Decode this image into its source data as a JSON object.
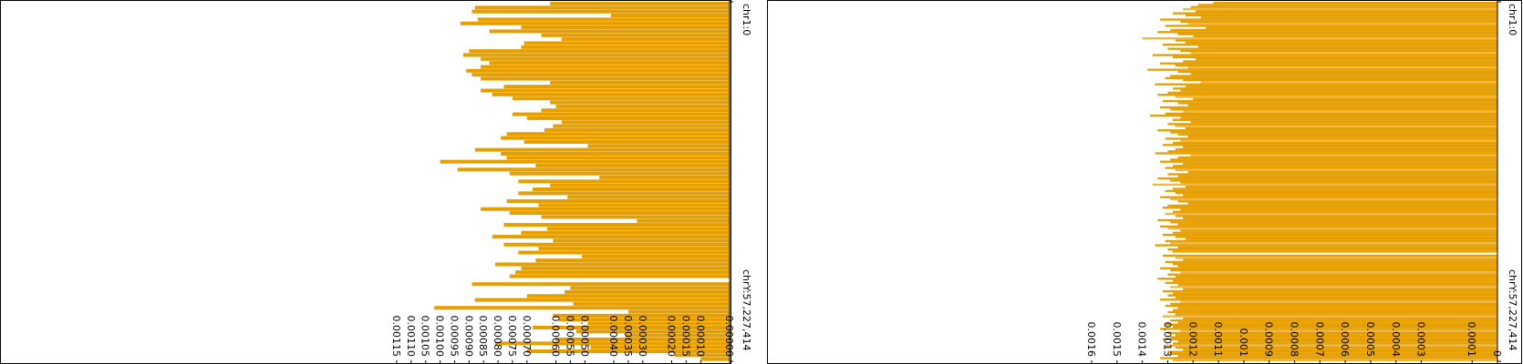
{
  "colors": {
    "bar": "#E69F00",
    "bar_light": "#F0B640",
    "axis": "#000000",
    "background": "#FFFFFF"
  },
  "chart_data": [
    {
      "type": "bar",
      "orientation": "horizontal",
      "title": "",
      "genome_start_label": "chr1:0",
      "genome_end_label": "chrY:57,227,414",
      "ylim": [
        0,
        0.00115
      ],
      "tick_values": [
        0,
        0.0001,
        0.00015,
        0.0002,
        0.0003,
        0.00035,
        0.0004,
        0.0005,
        0.00055,
        0.0006,
        0.0007,
        0.00075,
        0.0008,
        0.00085,
        0.0009,
        0.00095,
        0.001,
        0.00105,
        0.0011,
        0.00115
      ],
      "tick_labels": [
        "0.00000",
        "0.00010",
        "0.00015",
        "0.00020",
        "0.00030",
        "0.00035",
        "0.00040",
        "0.00050",
        "0.00055",
        "0.00060",
        "0.00070",
        "0.00075",
        "0.00080",
        "0.00085",
        "0.00090",
        "0.00095",
        "0.00100",
        "0.00105",
        "0.00110",
        "0.00115"
      ],
      "series": [
        {
          "name": "coverage",
          "values": [
            0.00062,
            0.00088,
            0.00089,
            0.00041,
            0.00087,
            0.00093,
            0.00072,
            0.00083,
            0.00065,
            0.00058,
            0.00071,
            0.00072,
            0.0009,
            0.00092,
            0.00086,
            0.00083,
            0.00086,
            0.00091,
            0.00089,
            0.00086,
            0.00062,
            0.00078,
            0.00086,
            0.00082,
            0.00075,
            0.00062,
            0.0006,
            0.00065,
            0.00075,
            0.0007,
            0.00058,
            0.00061,
            0.00064,
            0.00077,
            0.00079,
            0.00071,
            0.00049,
            0.00088,
            0.00079,
            0.00077,
            0.001,
            0.00067,
            0.00094,
            0.00076,
            0.00045,
            0.00073,
            0.00062,
            0.00068,
            0.00073,
            0.00056,
            0.00077,
            0.00066,
            0.00086,
            0.00076,
            0.00065,
            0.00032,
            0.00078,
            0.00063,
            0.00072,
            0.00082,
            0.00061,
            0.00078,
            0.00066,
            0.00073,
            0.00051,
            0.00067,
            0.00081,
            0.00072,
            0.00074,
            0.00076,
            0.0,
            0.00089,
            0.00055,
            0.00057,
            0.0007,
            0.00088,
            0.00054,
            0.00102,
            0.00035,
            0.00061,
            0.00059,
            0.00049,
            0.00068,
            0.00053,
            0.00036,
            0.0006,
            0.00081,
            0.00048,
            0.0007,
            0.00019,
            0.0001
          ]
        }
      ]
    },
    {
      "type": "bar",
      "orientation": "horizontal",
      "title": "",
      "genome_start_label": "chr1:0",
      "genome_end_label": "chrY:57,227,414",
      "ylim": [
        0,
        0.0016
      ],
      "tick_values": [
        0,
        0.0001,
        0.0003,
        0.0004,
        0.0005,
        0.0006,
        0.0007,
        0.0008,
        0.0009,
        0.001,
        0.0011,
        0.0012,
        0.0013,
        0.0014,
        0.0015,
        0.0016
      ],
      "tick_labels": [
        "0",
        "0.0001",
        "0.0003",
        "0.0004",
        "0.0005",
        "0.0006",
        "0.0007",
        "0.0008",
        "0.0009",
        "0.001",
        "0.0011",
        "0.0012",
        "0.0013",
        "0.0014",
        "0.0015",
        "0.0016"
      ],
      "series": [
        {
          "name": "coverage",
          "values": [
            0.00112,
            0.00118,
            0.00121,
            0.00124,
            0.00119,
            0.00128,
            0.00123,
            0.00117,
            0.00133,
            0.00125,
            0.00122,
            0.00131,
            0.00115,
            0.00129,
            0.00134,
            0.00126,
            0.0012,
            0.0014,
            0.00127,
            0.00123,
            0.00132,
            0.00118,
            0.0013,
            0.00125,
            0.00121,
            0.00136,
            0.00128,
            0.00119,
            0.00124,
            0.00133,
            0.00127,
            0.00122,
            0.00138,
            0.00126,
            0.00121,
            0.00129,
            0.00131,
            0.00124,
            0.00117,
            0.00135,
            0.00123,
            0.00128,
            0.00125,
            0.0013,
            0.00134,
            0.00127,
            0.0012,
            0.00132,
            0.00126,
            0.00122,
            0.00133,
            0.00129,
            0.00124,
            0.00131,
            0.00137,
            0.00125,
            0.00128,
            0.00121,
            0.0013,
            0.00127,
            0.00123,
            0.00134,
            0.00129,
            0.00126,
            0.00122,
            0.00131,
            0.00125,
            0.00128,
            0.00132,
            0.00124,
            0.00127,
            0.0013,
            0.00135,
            0.00121,
            0.00126,
            0.00129,
            0.00133,
            0.00124,
            0.00128,
            0.00131,
            0.00127,
            0.00122,
            0.0013,
            0.00126,
            0.00134,
            0.00129,
            0.00125,
            0.00136,
            0.00123,
            0.00128,
            0.00131,
            0.00127,
            0.00124,
            0.00133,
            0.00129,
            0.00126,
            0.00122,
            0.0013,
            0.00132,
            0.00125,
            0.00128,
            0.00131,
            0.00127,
            0.00124,
            0.00134,
            0.00129,
            0.00126,
            0.00133,
            0.0013,
            0.00125,
            0.00128,
            0.00132,
            0.00127,
            0.00123,
            0.00131,
            0.00129,
            0.00135,
            0.00126,
            0.0013,
            0.00128,
            0.0,
            0.00132,
            0.00127,
            0.00124,
            0.00131,
            0.00128,
            0.00126,
            0.00133,
            0.00129,
            0.00125,
            0.0013,
            0.00127,
            0.00134,
            0.00128,
            0.00131,
            0.00126,
            0.00129,
            0.00124,
            0.00132,
            0.00128,
            0.0013,
            0.00127,
            0.00133,
            0.00125,
            0.00129,
            0.00131,
            0.00126,
            0.00128,
            0.0013,
            0.00127,
            0.00132,
            0.00124,
            0.00129,
            0.00126,
            0.00131,
            0.00128,
            0.00133,
            0.00125,
            0.0013,
            0.00127,
            0.00129,
            0.00132,
            0.00126,
            0.00128,
            0.00131,
            0.00127,
            0.00124,
            0.0013,
            0.00129,
            0.00126,
            0.00133,
            0.00128
          ]
        }
      ]
    }
  ]
}
